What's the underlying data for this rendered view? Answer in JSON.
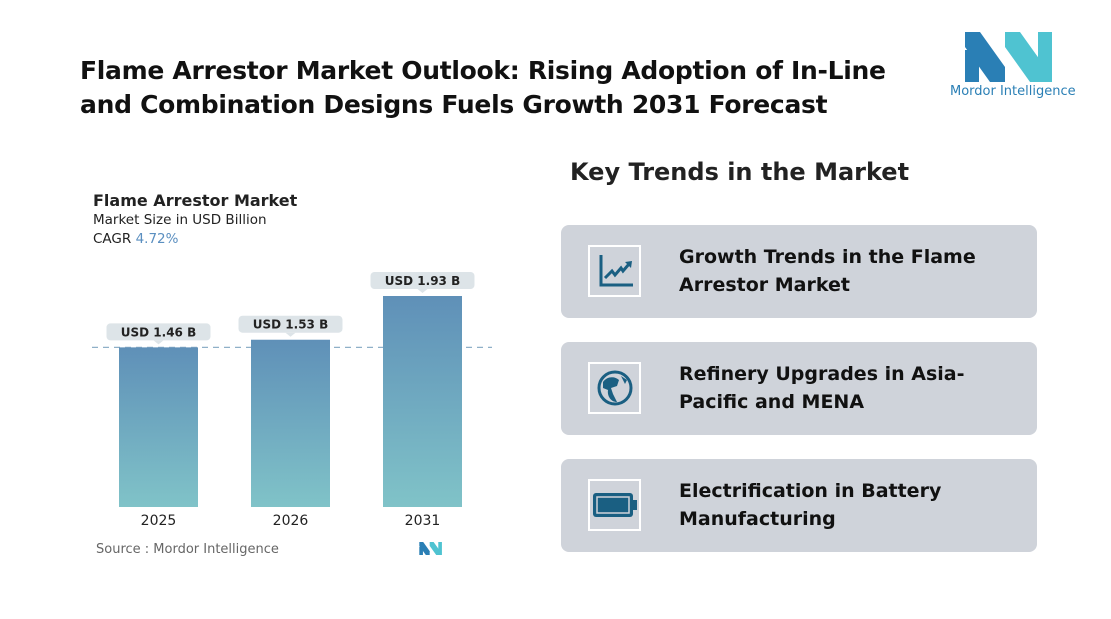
{
  "title": "Flame Arrestor Market Outlook: Rising Adoption of In-Line and Combination Designs Fuels Growth 2031 Forecast",
  "logo": {
    "text": "Mordor Intelligence",
    "colors": [
      "#2a7fb5",
      "#4fc3d1"
    ]
  },
  "chart_data": {
    "type": "bar",
    "title": "Flame Arrestor Market",
    "subtitle": "Market Size in USD Billion",
    "cagr_label": "CAGR",
    "cagr_value": "4.72%",
    "categories": [
      "2025",
      "2026",
      "2031"
    ],
    "values": [
      1.46,
      1.53,
      1.93
    ],
    "data_labels": [
      "USD 1.46 B",
      "USD 1.53 B",
      "USD 1.93 B"
    ],
    "ylim": [
      0,
      1.93
    ],
    "reference_line": 1.46,
    "bar_colors": {
      "top": "#5f90b8",
      "bottom": "#80c3c8"
    },
    "source": "Source :  Mordor Intelligence"
  },
  "trends": {
    "heading": "Key Trends in the Market",
    "items": [
      {
        "icon": "line-chart-icon",
        "label": "Growth Trends in the Flame Arrestor Market"
      },
      {
        "icon": "globe-icon",
        "label": "Refinery Upgrades in Asia-Pacific and MENA"
      },
      {
        "icon": "battery-icon",
        "label": "Electrification in Battery Manufacturing"
      }
    ],
    "icon_color": "#1a5f82"
  }
}
